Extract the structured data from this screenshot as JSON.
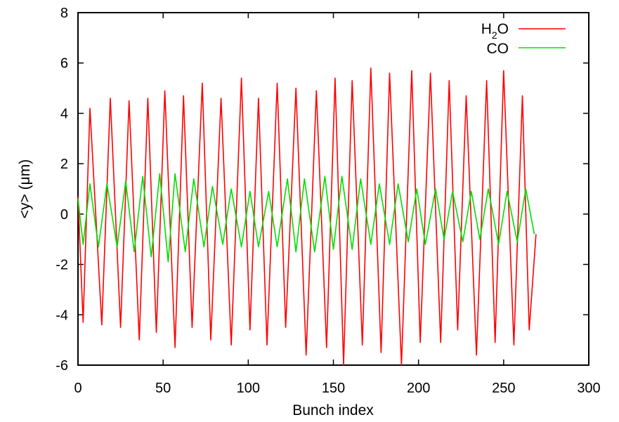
{
  "chart_data": {
    "type": "line",
    "xlabel": "Bunch index",
    "ylabel": "<y> (μm)",
    "xlim": [
      0,
      300
    ],
    "ylim": [
      -6,
      8
    ],
    "xticks": [
      "0",
      "50",
      "100",
      "150",
      "200",
      "250",
      "300"
    ],
    "yticks": [
      "-6",
      "-4",
      "-2",
      "0",
      "2",
      "4",
      "6",
      "8"
    ],
    "legend_position": "top-right",
    "grid": false,
    "series": [
      {
        "name": "H2O",
        "legend_main": "H",
        "legend_sub": "2",
        "legend_tail": "O",
        "color": "#ff0000",
        "x": [
          0,
          3,
          7,
          14,
          19,
          25,
          30,
          36,
          41,
          46,
          51,
          57,
          62,
          67,
          73,
          78,
          84,
          90,
          96,
          101,
          106,
          111,
          117,
          122,
          128,
          134,
          140,
          146,
          151,
          156,
          161,
          167,
          172,
          178,
          183,
          190,
          196,
          201,
          207,
          213,
          218,
          223,
          228,
          234,
          240,
          245,
          250,
          256,
          261,
          265,
          269
        ],
        "values": [
          0.7,
          -4.3,
          4.2,
          -4.4,
          4.6,
          -4.5,
          4.5,
          -5.0,
          4.6,
          -4.7,
          4.9,
          -5.3,
          4.7,
          -4.5,
          5.2,
          -5.0,
          4.6,
          -5.2,
          5.4,
          -4.6,
          4.6,
          -5.2,
          5.2,
          -4.5,
          5.0,
          -5.6,
          4.9,
          -5.3,
          5.4,
          -6.0,
          5.3,
          -5.2,
          5.8,
          -5.5,
          5.6,
          -6.0,
          5.7,
          -5.1,
          5.6,
          -5.1,
          5.3,
          -4.6,
          4.7,
          -5.6,
          5.3,
          -5.1,
          5.7,
          -5.2,
          4.7,
          -4.6,
          -0.8
        ]
      },
      {
        "name": "CO",
        "color": "#00dd00",
        "x": [
          0,
          3,
          7,
          12,
          17,
          23,
          28,
          33,
          38,
          43,
          48,
          53,
          57,
          63,
          68,
          74,
          79,
          85,
          90,
          96,
          101,
          106,
          112,
          117,
          123,
          128,
          133,
          139,
          145,
          150,
          155,
          161,
          166,
          172,
          177,
          183,
          188,
          194,
          199,
          204,
          210,
          215,
          220,
          226,
          231,
          236,
          241,
          247,
          252,
          258,
          263,
          268
        ],
        "values": [
          0.6,
          -1.2,
          1.2,
          -1.3,
          1.2,
          -1.3,
          1.3,
          -1.5,
          1.5,
          -1.7,
          1.6,
          -1.9,
          1.6,
          -1.5,
          1.4,
          -1.3,
          1.1,
          -1.2,
          1.0,
          -1.3,
          0.9,
          -1.3,
          0.9,
          -1.3,
          1.4,
          -1.5,
          1.4,
          -1.5,
          1.5,
          -1.4,
          1.5,
          -1.4,
          1.4,
          -1.2,
          1.2,
          -1.2,
          1.2,
          -1.1,
          1.0,
          -1.2,
          1.0,
          -1.0,
          0.9,
          -1.1,
          0.9,
          -1.0,
          1.0,
          -1.2,
          0.9,
          -1.1,
          1.0,
          -0.8
        ]
      }
    ]
  }
}
